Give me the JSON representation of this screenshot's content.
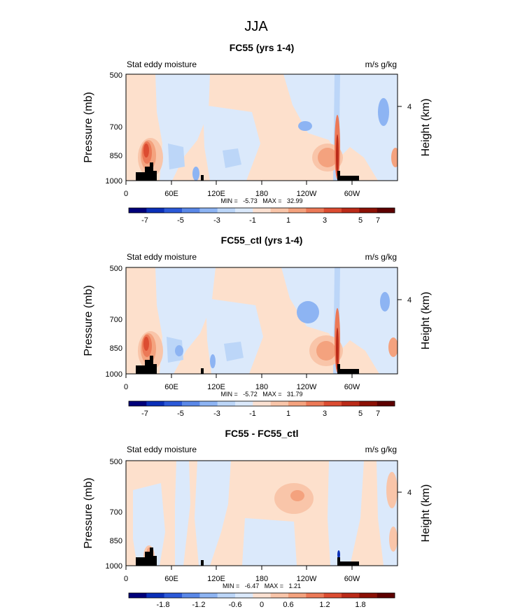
{
  "figure": {
    "title": "JJA"
  },
  "colors": {
    "ocean_fill": "#fde0cc",
    "land_fill": "#cfe3f8",
    "mask": "#000000",
    "scale": [
      "#00007a",
      "#0a2fb8",
      "#2b59d8",
      "#5a88e8",
      "#8db4f3",
      "#bcd6f8",
      "#dbe9fb",
      "#fbe1d2",
      "#f9c5a9",
      "#f4a27e",
      "#ec7957",
      "#dc4c31",
      "#bb2a18",
      "#8c1005",
      "#5e0000"
    ]
  },
  "chart_data": [
    {
      "type": "heatmap",
      "title": "FC55 (yrs 1-4)",
      "left_label": "Stat eddy moisture",
      "right_label": "m/s g/kg",
      "ylabel": "Pressure (mb)",
      "y2label": "Height (km)",
      "y_ticks": [
        "500",
        "700",
        "850",
        "1000"
      ],
      "y2_ticks": [
        "4"
      ],
      "x_ticks": [
        "0",
        "60E",
        "120E",
        "180",
        "120W",
        "60W"
      ],
      "min_max": "MIN =   -5.73   MAX =   32.99",
      "colorbar_ticks": [
        "-7",
        "-5",
        "-3",
        "-1",
        "1",
        "3",
        "5",
        "7"
      ],
      "min": -5.73,
      "max": 32.99
    },
    {
      "type": "heatmap",
      "title": "FC55_ctl (yrs 1-4)",
      "left_label": "Stat eddy moisture",
      "right_label": "m/s g/kg",
      "ylabel": "Pressure (mb)",
      "y2label": "Height (km)",
      "y_ticks": [
        "500",
        "700",
        "850",
        "1000"
      ],
      "y2_ticks": [
        "4"
      ],
      "x_ticks": [
        "0",
        "60E",
        "120E",
        "180",
        "120W",
        "60W"
      ],
      "min_max": "MIN =   -5.72   MAX =   31.79",
      "colorbar_ticks": [
        "-7",
        "-5",
        "-3",
        "-1",
        "1",
        "3",
        "5",
        "7"
      ],
      "min": -5.72,
      "max": 31.79
    },
    {
      "type": "heatmap",
      "title": "FC55 - FC55_ctl",
      "left_label": "Stat eddy moisture",
      "right_label": "m/s g/kg",
      "ylabel": "Pressure (mb)",
      "y2label": "Height (km)",
      "y_ticks": [
        "500",
        "700",
        "850",
        "1000"
      ],
      "y2_ticks": [
        "4"
      ],
      "x_ticks": [
        "0",
        "60E",
        "120E",
        "180",
        "120W",
        "60W"
      ],
      "min_max": "MIN =   -6.47   MAX =   1.21",
      "colorbar_ticks": [
        "-1.8",
        "-1.2",
        "-0.6",
        "0",
        "0.6",
        "1.2",
        "1.8"
      ],
      "min": -6.47,
      "max": 1.21
    }
  ]
}
